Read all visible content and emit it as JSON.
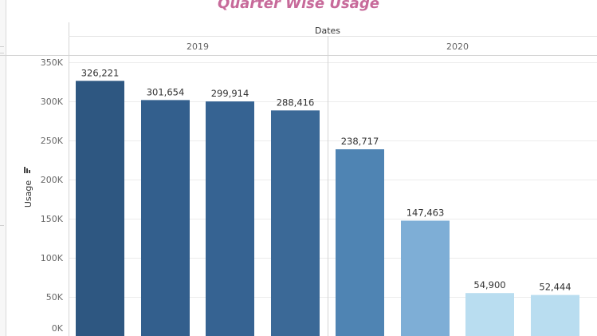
{
  "chart_data": {
    "type": "bar",
    "title": "Quarter Wise Usage",
    "column_header": "Dates",
    "groups": [
      {
        "label": "2019",
        "values": [
          326221,
          301654,
          299914,
          288416
        ]
      },
      {
        "label": "2020",
        "values": [
          238717,
          147463,
          54900,
          52444
        ]
      }
    ],
    "data_labels": [
      "326,221",
      "301,654",
      "299,914",
      "288,416",
      "238,717",
      "147,463",
      "54,900",
      "52,444"
    ],
    "bar_colors": [
      "#2e5781",
      "#335f8d",
      "#366392",
      "#3b6997",
      "#4f84b3",
      "#7eaed6",
      "#b9ddf0",
      "#b9ddf0"
    ],
    "ylabel": "Usage",
    "ylim": [
      0,
      350000
    ],
    "y_ticks": [
      0,
      50000,
      100000,
      150000,
      200000,
      250000,
      300000,
      350000
    ],
    "y_tick_labels": [
      "0K",
      "50K",
      "100K",
      "150K",
      "200K",
      "250K",
      "300K",
      "350K"
    ],
    "grid": true,
    "legend": "none"
  }
}
